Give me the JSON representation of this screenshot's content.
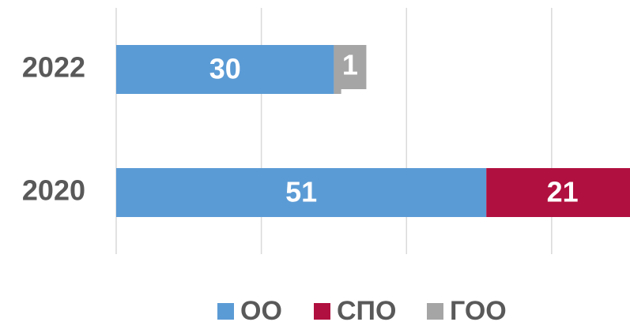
{
  "chart_data": {
    "type": "barh_stacked",
    "categories": [
      "2022",
      "2020"
    ],
    "series": [
      {
        "name": "ОО",
        "color": "#5b9bd5",
        "values": [
          30,
          51
        ]
      },
      {
        "name": "СПО",
        "color": "#b0103f",
        "values": [
          null,
          21
        ]
      },
      {
        "name": "ГОО",
        "color": "#a5a5a5",
        "values": [
          1,
          null
        ]
      }
    ],
    "xlim": [
      0,
      70.8
    ],
    "grid_lines": [
      0,
      20,
      40,
      60
    ],
    "legend": "bottom"
  }
}
